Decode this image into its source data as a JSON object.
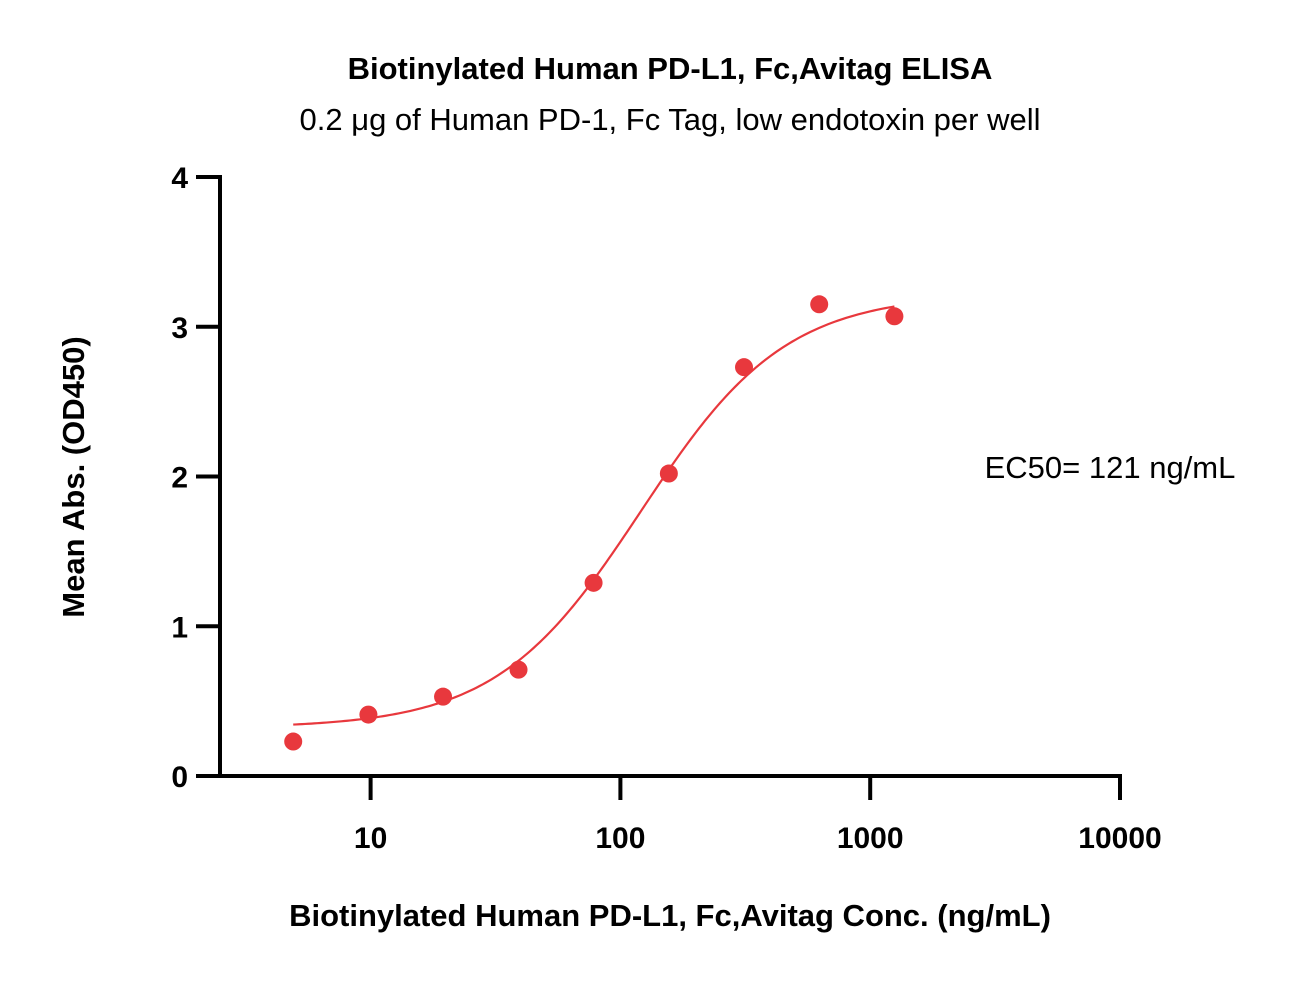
{
  "chart_data": {
    "type": "scatter",
    "title": "Biotinylated Human PD-L1, Fc,Avitag ELISA",
    "subtitle": "0.2 μg of Human PD-1, Fc Tag, low endotoxin per well",
    "xlabel": "Biotinylated Human PD-L1, Fc,Avitag Conc. (ng/mL)",
    "ylabel": "Mean Abs. (OD450)",
    "x_scale": "log",
    "xlim": [
      2,
      10000
    ],
    "ylim": [
      0,
      4
    ],
    "x_ticks": [
      10,
      100,
      1000,
      10000
    ],
    "x_tick_labels": [
      "10",
      "100",
      "1000",
      "10000"
    ],
    "y_ticks": [
      0,
      1,
      2,
      3,
      4
    ],
    "y_tick_labels": [
      "0",
      "1",
      "2",
      "3",
      "4"
    ],
    "grid": false,
    "legend": "none",
    "color": "#e8383d",
    "series": [
      {
        "x": [
          4.9,
          9.8,
          19.5,
          39.1,
          78.1,
          156.3,
          312.5,
          625,
          1250
        ],
        "y": [
          0.23,
          0.41,
          0.53,
          0.71,
          1.29,
          2.02,
          2.73,
          3.15,
          3.07
        ]
      }
    ],
    "fit_curve": {
      "model": "4PL",
      "x_range": [
        4.9,
        1250
      ],
      "bottom": 0.32,
      "top": 3.22,
      "ec50": 121,
      "hill": 1.5
    },
    "annotations": [
      {
        "text": "EC50= 121 ng/mL"
      }
    ]
  }
}
